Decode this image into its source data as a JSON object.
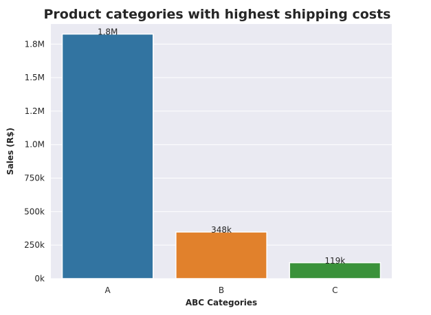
{
  "chart_data": {
    "type": "bar",
    "title": "Product categories with highest shipping costs",
    "xlabel": "ABC Categories",
    "ylabel": "Sales (R$)",
    "categories": [
      "A",
      "B",
      "C"
    ],
    "values": [
      1825000,
      348000,
      119000
    ],
    "data_labels": [
      "1.8M",
      "348k",
      "119k"
    ],
    "colors": [
      "#3274a1",
      "#e1812c",
      "#3a923a"
    ],
    "ylim": [
      0,
      1900000
    ],
    "yticks": [
      {
        "value": 0,
        "label": "0k"
      },
      {
        "value": 250000,
        "label": "250k"
      },
      {
        "value": 500000,
        "label": "500k"
      },
      {
        "value": 750000,
        "label": "750k"
      },
      {
        "value": 1000000,
        "label": "1.0M"
      },
      {
        "value": 1250000,
        "label": "1.2M"
      },
      {
        "value": 1500000,
        "label": "1.5M"
      },
      {
        "value": 1750000,
        "label": "1.8M"
      }
    ],
    "grid": true,
    "background": "#eaeaf2"
  }
}
